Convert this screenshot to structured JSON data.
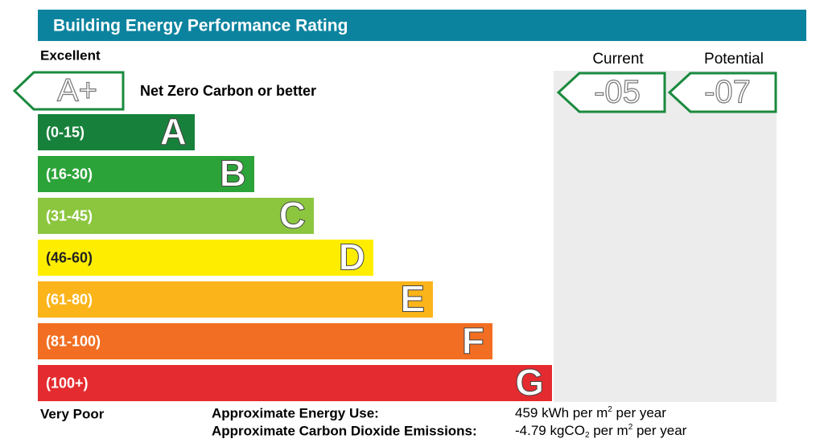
{
  "header": {
    "title": "Building Energy Performance Rating"
  },
  "scale": {
    "top_label": "Excellent",
    "bottom_label": "Very Poor",
    "top_rating": {
      "letter": "A+",
      "description": "Net Zero Carbon or better"
    },
    "bands": [
      {
        "range": "(0-15)",
        "letter": "A",
        "color": "#17813c"
      },
      {
        "range": "(16-30)",
        "letter": "B",
        "color": "#2ba338"
      },
      {
        "range": "(31-45)",
        "letter": "C",
        "color": "#8cc63f"
      },
      {
        "range": "(46-60)",
        "letter": "D",
        "color": "#ffed00"
      },
      {
        "range": "(61-80)",
        "letter": "E",
        "color": "#fbb41a"
      },
      {
        "range": "(81-100)",
        "letter": "F",
        "color": "#f26e22"
      },
      {
        "range": "(100+)",
        "letter": "G",
        "color": "#e42b2f"
      }
    ]
  },
  "ratings": {
    "current": {
      "label": "Current",
      "value": "-05"
    },
    "potential": {
      "label": "Potential",
      "value": "-07"
    }
  },
  "footer": {
    "energy": {
      "label": "Approximate Energy Use:",
      "value": [
        "459 kWh per m",
        "2",
        " per year"
      ]
    },
    "emissions": {
      "label": "Approximate Carbon Dioxide Emissions:",
      "value": [
        "-4.79 kgCO",
        "2",
        " per m",
        "2",
        " per year"
      ]
    }
  }
}
